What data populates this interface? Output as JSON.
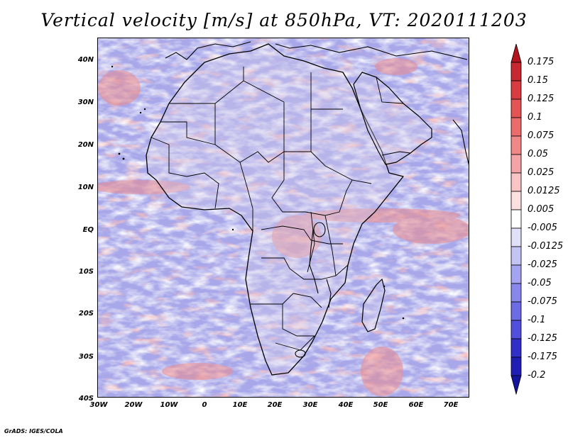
{
  "title": "Vertical velocity [m/s] at 850hPa, VT: 2020111203",
  "credit": "GrADS: IGES/COLA",
  "map": {
    "region": "Africa",
    "variable": "Vertical velocity",
    "units": "m/s",
    "level": "850hPa",
    "valid_time": "2020111203",
    "lat_labels": [
      "40N",
      "30N",
      "20N",
      "10N",
      "EQ",
      "10S",
      "20S",
      "30S",
      "40S"
    ],
    "lon_labels": [
      "30W",
      "20W",
      "10W",
      "0",
      "10E",
      "20E",
      "30E",
      "40E",
      "50E",
      "60E",
      "70E"
    ],
    "lat_range": [
      -40,
      45
    ],
    "lon_range": [
      -30,
      75
    ]
  },
  "colorbar": {
    "labels": [
      "0.175",
      "0.15",
      "0.125",
      "0.1",
      "0.075",
      "0.05",
      "0.025",
      "0.0125",
      "0.005",
      "-0.005",
      "-0.0125",
      "-0.025",
      "-0.05",
      "-0.075",
      "-0.1",
      "-0.125",
      "-0.175",
      "-0.2"
    ],
    "colors": [
      "#b4141e",
      "#c82830",
      "#d83c40",
      "#e45454",
      "#ec6c6c",
      "#f08888",
      "#f4a4a4",
      "#f8c4c4",
      "#fce0e0",
      "#ffffff",
      "#e0e0f8",
      "#c4c4f4",
      "#a4a4f0",
      "#8888ec",
      "#6c6ce4",
      "#5050dc",
      "#3030c8",
      "#1e1eb4",
      "#14149c"
    ]
  }
}
